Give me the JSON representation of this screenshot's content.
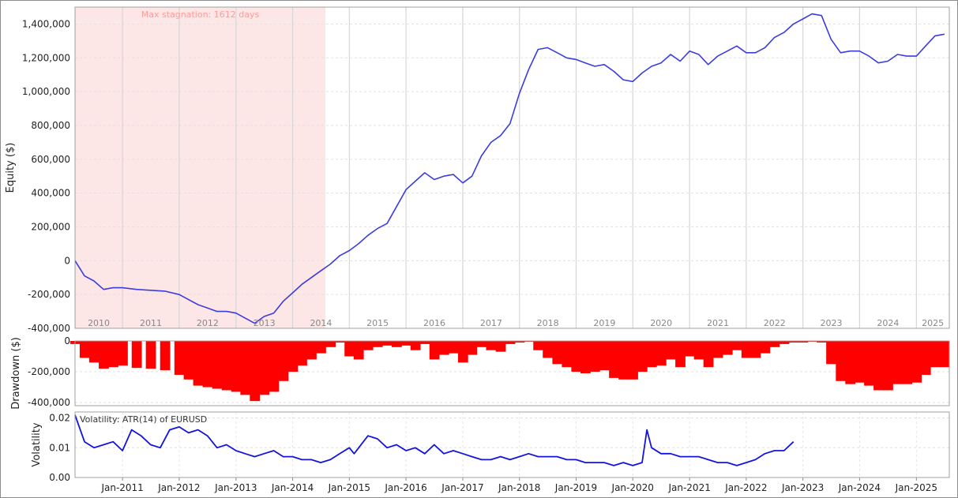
{
  "chart_data": [
    {
      "type": "line",
      "panel": "equity",
      "ylabel": "Equity ($)",
      "ylim": [
        -400000,
        1500000
      ],
      "yticks": [
        -400000,
        -200000,
        0,
        200000,
        400000,
        600000,
        800000,
        1000000,
        1200000,
        1400000
      ],
      "ytick_labels": [
        "-400,000",
        "-200,000",
        "0",
        "200,000",
        "400,000",
        "600,000",
        "800,000",
        "1,000,000",
        "1,200,000",
        "1,400,000"
      ],
      "year_labels": [
        "2010",
        "2011",
        "2012",
        "2013",
        "2014",
        "2015",
        "2016",
        "2017",
        "2018",
        "2019",
        "2020",
        "2021",
        "2022",
        "2023",
        "2024",
        "2025"
      ],
      "annotation": "Max stagnation: 1612 days",
      "stagnation_period": [
        "2010-03-01",
        "2014-07-31"
      ],
      "line_color": "#3c3ce0",
      "stagnation_color": "#fde6e6",
      "grid": true,
      "series": [
        {
          "x": [
            "2010-03",
            "2010-05",
            "2010-07",
            "2010-09",
            "2010-11",
            "2011-01",
            "2011-04",
            "2011-07",
            "2011-10",
            "2012-01",
            "2012-03",
            "2012-05",
            "2012-07",
            "2012-09",
            "2012-11",
            "2013-01",
            "2013-03",
            "2013-05",
            "2013-07",
            "2013-09",
            "2013-11",
            "2014-01",
            "2014-03",
            "2014-05",
            "2014-07",
            "2014-09",
            "2014-11",
            "2015-01",
            "2015-03",
            "2015-05",
            "2015-07",
            "2015-09",
            "2015-11",
            "2016-01",
            "2016-03",
            "2016-05",
            "2016-07",
            "2016-09",
            "2016-11",
            "2017-01",
            "2017-03",
            "2017-05",
            "2017-07",
            "2017-09",
            "2017-11",
            "2018-01",
            "2018-03",
            "2018-05",
            "2018-07",
            "2018-09",
            "2018-11",
            "2019-01",
            "2019-03",
            "2019-05",
            "2019-07",
            "2019-09",
            "2019-11",
            "2020-01",
            "2020-03",
            "2020-05",
            "2020-07",
            "2020-09",
            "2020-11",
            "2021-01",
            "2021-03",
            "2021-05",
            "2021-07",
            "2021-09",
            "2021-11",
            "2022-01",
            "2022-03",
            "2022-05",
            "2022-07",
            "2022-09",
            "2022-11",
            "2023-01",
            "2023-03",
            "2023-05",
            "2023-07",
            "2023-09",
            "2023-11",
            "2024-01",
            "2024-03",
            "2024-05",
            "2024-07",
            "2024-09",
            "2024-11",
            "2025-01",
            "2025-03",
            "2025-05",
            "2025-07"
          ],
          "y": [
            0,
            -90000,
            -120000,
            -170000,
            -160000,
            -160000,
            -170000,
            -175000,
            -180000,
            -200000,
            -230000,
            -260000,
            -280000,
            -300000,
            -300000,
            -310000,
            -340000,
            -370000,
            -330000,
            -310000,
            -240000,
            -190000,
            -140000,
            -100000,
            -60000,
            -20000,
            30000,
            60000,
            100000,
            150000,
            190000,
            220000,
            320000,
            420000,
            470000,
            520000,
            480000,
            500000,
            510000,
            460000,
            500000,
            620000,
            700000,
            740000,
            810000,
            990000,
            1130000,
            1250000,
            1260000,
            1230000,
            1200000,
            1190000,
            1170000,
            1150000,
            1160000,
            1120000,
            1070000,
            1060000,
            1110000,
            1150000,
            1170000,
            1220000,
            1180000,
            1240000,
            1220000,
            1160000,
            1210000,
            1240000,
            1270000,
            1230000,
            1230000,
            1260000,
            1320000,
            1350000,
            1400000,
            1430000,
            1460000,
            1450000,
            1310000,
            1230000,
            1240000,
            1240000,
            1210000,
            1170000,
            1180000,
            1220000,
            1210000,
            1210000,
            1270000,
            1330000,
            1340000
          ]
        }
      ]
    },
    {
      "type": "bar",
      "panel": "drawdown",
      "ylabel": "Drawdown ($)",
      "ylim": [
        -420000,
        0
      ],
      "yticks": [
        0,
        -200000,
        -400000
      ],
      "ytick_labels": [
        "0",
        "-200,000",
        "-400,000"
      ],
      "bar_color": "#ff0000",
      "grid": true,
      "series": [
        {
          "x": [
            "2010-03",
            "2010-05",
            "2010-07",
            "2010-09",
            "2010-11",
            "2011-01",
            "2011-04",
            "2011-07",
            "2011-10",
            "2012-01",
            "2012-03",
            "2012-05",
            "2012-07",
            "2012-09",
            "2012-11",
            "2013-01",
            "2013-03",
            "2013-05",
            "2013-07",
            "2013-09",
            "2013-11",
            "2014-01",
            "2014-03",
            "2014-05",
            "2014-07",
            "2014-09",
            "2014-11",
            "2015-01",
            "2015-03",
            "2015-05",
            "2015-07",
            "2015-09",
            "2015-11",
            "2016-01",
            "2016-03",
            "2016-05",
            "2016-07",
            "2016-09",
            "2016-11",
            "2017-01",
            "2017-03",
            "2017-05",
            "2017-07",
            "2017-09",
            "2017-11",
            "2018-01",
            "2018-03",
            "2018-05",
            "2018-07",
            "2018-09",
            "2018-11",
            "2019-01",
            "2019-03",
            "2019-05",
            "2019-07",
            "2019-09",
            "2019-11",
            "2020-01",
            "2020-03",
            "2020-05",
            "2020-07",
            "2020-09",
            "2020-11",
            "2021-01",
            "2021-03",
            "2021-05",
            "2021-07",
            "2021-09",
            "2021-11",
            "2022-01",
            "2022-03",
            "2022-05",
            "2022-07",
            "2022-09",
            "2022-11",
            "2023-01",
            "2023-03",
            "2023-05",
            "2023-07",
            "2023-09",
            "2023-11",
            "2024-01",
            "2024-03",
            "2024-05",
            "2024-07",
            "2024-09",
            "2024-11",
            "2025-01",
            "2025-03",
            "2025-05",
            "2025-07"
          ],
          "y": [
            -20000,
            -110000,
            -140000,
            -180000,
            -170000,
            -160000,
            -175000,
            -180000,
            -190000,
            -220000,
            -250000,
            -290000,
            -300000,
            -310000,
            -320000,
            -330000,
            -350000,
            -390000,
            -350000,
            -330000,
            -260000,
            -200000,
            -160000,
            -120000,
            -80000,
            -40000,
            -10000,
            -100000,
            -120000,
            -60000,
            -40000,
            -30000,
            -40000,
            -30000,
            -60000,
            -20000,
            -120000,
            -90000,
            -80000,
            -140000,
            -90000,
            -40000,
            -60000,
            -70000,
            -20000,
            -10000,
            -5000,
            -60000,
            -110000,
            -150000,
            -170000,
            -200000,
            -210000,
            -200000,
            -190000,
            -240000,
            -250000,
            -250000,
            -200000,
            -170000,
            -160000,
            -120000,
            -170000,
            -100000,
            -120000,
            -170000,
            -110000,
            -90000,
            -60000,
            -110000,
            -110000,
            -80000,
            -40000,
            -20000,
            -10000,
            -10000,
            -5000,
            -10000,
            -150000,
            -260000,
            -280000,
            -270000,
            -290000,
            -320000,
            -320000,
            -280000,
            -280000,
            -270000,
            -220000,
            -170000,
            -170000
          ]
        }
      ]
    },
    {
      "type": "line",
      "panel": "volatility",
      "ylabel": "Volatility",
      "annotation": "Volatility: ATR(14) of EURUSD",
      "ylim": [
        0,
        0.022
      ],
      "yticks": [
        0,
        0.01,
        0.02
      ],
      "ytick_labels": [
        "0.00",
        "0.01",
        "0.02"
      ],
      "xtick_labels": [
        "Jan-2011",
        "Jan-2012",
        "Jan-2013",
        "Jan-2014",
        "Jan-2015",
        "Jan-2016",
        "Jan-2017",
        "Jan-2018",
        "Jan-2019",
        "Jan-2020",
        "Jan-2021",
        "Jan-2022",
        "Jan-2023",
        "Jan-2024",
        "Jan-2025"
      ],
      "line_color": "#1414e0",
      "grid": true,
      "series": [
        {
          "x": [
            "2010-03",
            "2010-05",
            "2010-07",
            "2010-09",
            "2010-11",
            "2011-01",
            "2011-03",
            "2011-05",
            "2011-07",
            "2011-09",
            "2011-11",
            "2012-01",
            "2012-03",
            "2012-05",
            "2012-07",
            "2012-09",
            "2012-11",
            "2013-01",
            "2013-03",
            "2013-05",
            "2013-07",
            "2013-09",
            "2013-11",
            "2014-01",
            "2014-03",
            "2014-05",
            "2014-07",
            "2014-09",
            "2014-11",
            "2015-01",
            "2015-02",
            "2015-05",
            "2015-07",
            "2015-09",
            "2015-11",
            "2016-01",
            "2016-03",
            "2016-05",
            "2016-07",
            "2016-09",
            "2016-11",
            "2017-01",
            "2017-03",
            "2017-05",
            "2017-07",
            "2017-09",
            "2017-11",
            "2018-01",
            "2018-03",
            "2018-05",
            "2018-07",
            "2018-09",
            "2018-11",
            "2019-01",
            "2019-03",
            "2019-05",
            "2019-07",
            "2019-09",
            "2019-11",
            "2020-01",
            "2020-03",
            "2020-04",
            "2020-05",
            "2020-07",
            "2020-09",
            "2020-11",
            "2021-01",
            "2021-03",
            "2021-05",
            "2021-07",
            "2021-09",
            "2021-11",
            "2022-01",
            "2022-03",
            "2022-05",
            "2022-07",
            "2022-09",
            "2022-11"
          ],
          "y": [
            0.021,
            0.012,
            0.01,
            0.011,
            0.012,
            0.009,
            0.016,
            0.014,
            0.011,
            0.01,
            0.016,
            0.017,
            0.015,
            0.016,
            0.014,
            0.01,
            0.011,
            0.009,
            0.008,
            0.007,
            0.008,
            0.009,
            0.007,
            0.007,
            0.006,
            0.006,
            0.005,
            0.006,
            0.008,
            0.01,
            0.008,
            0.014,
            0.013,
            0.01,
            0.011,
            0.009,
            0.01,
            0.008,
            0.011,
            0.008,
            0.009,
            0.008,
            0.007,
            0.006,
            0.006,
            0.007,
            0.006,
            0.007,
            0.008,
            0.007,
            0.007,
            0.007,
            0.006,
            0.006,
            0.005,
            0.005,
            0.005,
            0.004,
            0.005,
            0.004,
            0.005,
            0.016,
            0.01,
            0.008,
            0.008,
            0.007,
            0.007,
            0.007,
            0.006,
            0.005,
            0.005,
            0.004,
            0.005,
            0.006,
            0.008,
            0.009,
            0.009,
            0.012
          ]
        }
      ]
    }
  ]
}
